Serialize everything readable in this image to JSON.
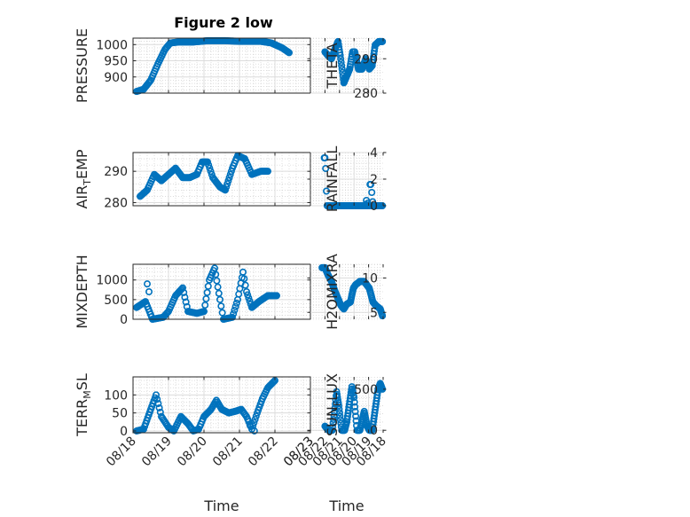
{
  "figure": {
    "title": "Figure 2 low"
  },
  "chart_data": [
    {
      "type": "scatter",
      "ylabel": "PRESSURE",
      "title": "Figure 2 low",
      "xlim": [
        0,
        5
      ],
      "ylim": [
        850,
        1020
      ],
      "yticks": [
        900,
        950,
        1000
      ],
      "ytick_labels": [
        "900",
        "950",
        "1000"
      ],
      "x_tick_labels": [
        "08/18",
        "08/19",
        "08/20",
        "08/21",
        "08/22",
        "08/23"
      ],
      "show_x_tick_labels": false,
      "xlabel": "",
      "grid": true,
      "marker": "open-circle",
      "color": "#0072BD",
      "curve": [
        [
          0.1,
          855
        ],
        [
          0.3,
          862
        ],
        [
          0.5,
          890
        ],
        [
          0.7,
          940
        ],
        [
          0.9,
          985
        ],
        [
          1.05,
          1005
        ],
        [
          1.3,
          1008
        ],
        [
          1.7,
          1008
        ],
        [
          2.1,
          1012
        ],
        [
          2.6,
          1012
        ],
        [
          3.0,
          1010
        ],
        [
          3.6,
          1010
        ],
        [
          3.9,
          1005
        ],
        [
          4.2,
          990
        ],
        [
          4.4,
          975
        ]
      ]
    },
    {
      "type": "scatter",
      "ylabel": "THETA",
      "xlim": [
        0,
        5
      ],
      "ylim": [
        280,
        296
      ],
      "yticks": [
        280,
        290
      ],
      "ytick_labels": [
        "280",
        "290"
      ],
      "x_tick_labels": [
        "08/18",
        "08/19",
        "08/20",
        "08/21",
        "08/22",
        "08/23"
      ],
      "show_x_tick_labels": false,
      "xlabel": "",
      "grid": true,
      "marker": "open-circle",
      "color": "#0072BD",
      "curve": [
        [
          0.05,
          295
        ],
        [
          0.3,
          295
        ],
        [
          0.55,
          294
        ],
        [
          0.75,
          288
        ],
        [
          0.95,
          287
        ],
        [
          1.2,
          290
        ],
        [
          1.45,
          287
        ],
        [
          1.7,
          287
        ],
        [
          1.95,
          292
        ],
        [
          2.1,
          292
        ],
        [
          2.3,
          287
        ],
        [
          2.5,
          285
        ],
        [
          2.7,
          283
        ],
        [
          2.95,
          291
        ],
        [
          3.1,
          295
        ],
        [
          3.3,
          293
        ],
        [
          3.55,
          290
        ],
        [
          3.8,
          291
        ],
        [
          4.0,
          292
        ]
      ]
    },
    {
      "type": "scatter",
      "ylabel": "AIR_TEMP",
      "xlim": [
        0,
        5
      ],
      "ylim": [
        279,
        296
      ],
      "yticks": [
        280,
        290
      ],
      "ytick_labels": [
        "280",
        "290"
      ],
      "x_tick_labels": [
        "08/18",
        "08/19",
        "08/20",
        "08/21",
        "08/22",
        "08/23"
      ],
      "show_x_tick_labels": false,
      "xlabel": "",
      "grid": true,
      "marker": "open-circle",
      "color": "#0072BD",
      "curve": [
        [
          0.2,
          282
        ],
        [
          0.4,
          284
        ],
        [
          0.6,
          289
        ],
        [
          0.8,
          287
        ],
        [
          1.0,
          289
        ],
        [
          1.2,
          291
        ],
        [
          1.4,
          288
        ],
        [
          1.6,
          288
        ],
        [
          1.8,
          289
        ],
        [
          1.95,
          293
        ],
        [
          2.1,
          293
        ],
        [
          2.25,
          288
        ],
        [
          2.45,
          285
        ],
        [
          2.6,
          284
        ],
        [
          2.8,
          291
        ],
        [
          2.95,
          295
        ],
        [
          3.15,
          294
        ],
        [
          3.35,
          289
        ],
        [
          3.6,
          290
        ],
        [
          3.8,
          290
        ]
      ]
    },
    {
      "type": "scatter",
      "ylabel": "RAINFALL",
      "xlim": [
        0,
        5
      ],
      "ylim": [
        0,
        4
      ],
      "yticks": [
        0,
        2,
        4
      ],
      "ytick_labels": [
        "0",
        "2",
        "4"
      ],
      "x_tick_labels": [
        "08/18",
        "08/19",
        "08/20",
        "08/21",
        "08/22",
        "08/23"
      ],
      "show_x_tick_labels": false,
      "xlabel": "",
      "grid": true,
      "marker": "open-circle",
      "color": "#0072BD",
      "curve": [
        [
          0.05,
          0
        ],
        [
          3.85,
          0
        ]
      ],
      "extra": [
        [
          0.72,
          0.3
        ],
        [
          0.78,
          1.0
        ],
        [
          0.85,
          1.6
        ],
        [
          0.9,
          1.6
        ],
        [
          1.05,
          0.2
        ],
        [
          1.15,
          0.4
        ],
        [
          1.2,
          0.1
        ],
        [
          3.9,
          1.1
        ],
        [
          3.95,
          2.8
        ],
        [
          4.0,
          3.6
        ],
        [
          4.05,
          3.6
        ]
      ]
    },
    {
      "type": "scatter",
      "ylabel": "MIXDEPTH",
      "xlim": [
        0,
        5
      ],
      "ylim": [
        0,
        1400
      ],
      "yticks": [
        0,
        500,
        1000
      ],
      "ytick_labels": [
        "0",
        "500",
        "1000"
      ],
      "x_tick_labels": [
        "08/18",
        "08/19",
        "08/20",
        "08/21",
        "08/22",
        "08/23"
      ],
      "show_x_tick_labels": false,
      "xlabel": "",
      "grid": true,
      "marker": "open-circle",
      "color": "#0072BD",
      "curve": [
        [
          0.1,
          300
        ],
        [
          0.35,
          450
        ],
        [
          0.55,
          0
        ],
        [
          0.85,
          50
        ],
        [
          1.0,
          200
        ],
        [
          1.2,
          600
        ],
        [
          1.4,
          800
        ],
        [
          1.55,
          200
        ],
        [
          1.8,
          150
        ],
        [
          2.0,
          200
        ],
        [
          2.15,
          1000
        ],
        [
          2.3,
          1300
        ],
        [
          2.45,
          500
        ],
        [
          2.55,
          0
        ],
        [
          2.8,
          50
        ],
        [
          2.95,
          500
        ],
        [
          3.1,
          1200
        ],
        [
          3.2,
          700
        ],
        [
          3.35,
          300
        ],
        [
          3.55,
          450
        ],
        [
          3.8,
          600
        ],
        [
          4.05,
          600
        ]
      ],
      "extra": [
        [
          0.4,
          900
        ],
        [
          0.45,
          700
        ]
      ]
    },
    {
      "type": "scatter",
      "ylabel": "H2OMIXRA",
      "xlim": [
        0,
        5
      ],
      "ylim": [
        4,
        12
      ],
      "yticks": [
        5,
        10
      ],
      "ytick_labels": [
        "5",
        "10"
      ],
      "x_tick_labels": [
        "08/18",
        "08/19",
        "08/20",
        "08/21",
        "08/22",
        "08/23"
      ],
      "show_x_tick_labels": false,
      "xlabel": "",
      "grid": true,
      "marker": "open-circle",
      "color": "#0072BD",
      "curve": [
        [
          0.05,
          4.5
        ],
        [
          0.2,
          5.5
        ],
        [
          0.5,
          6.0
        ],
        [
          0.7,
          6.5
        ],
        [
          0.95,
          8.5
        ],
        [
          1.3,
          9.5
        ],
        [
          1.6,
          9.5
        ],
        [
          1.9,
          9.0
        ],
        [
          2.05,
          8.5
        ],
        [
          2.25,
          6.5
        ],
        [
          2.5,
          6.2
        ],
        [
          2.7,
          5.5
        ],
        [
          2.9,
          6.0
        ],
        [
          3.1,
          7.0
        ],
        [
          3.3,
          8.0
        ],
        [
          3.55,
          9.5
        ],
        [
          3.8,
          10.5
        ],
        [
          4.0,
          11.5
        ],
        [
          4.2,
          11.5
        ]
      ]
    },
    {
      "type": "scatter",
      "ylabel": "TERR_MSL",
      "xlim": [
        0,
        5
      ],
      "ylim": [
        -5,
        150
      ],
      "yticks": [
        0,
        50,
        100
      ],
      "ytick_labels": [
        "0",
        "50",
        "100"
      ],
      "x_tick_labels": [
        "08/18",
        "08/19",
        "08/20",
        "08/21",
        "08/22",
        "08/23"
      ],
      "show_x_tick_labels": true,
      "xlabel": "Time",
      "grid": true,
      "marker": "open-circle",
      "color": "#0072BD",
      "curve": [
        [
          0.1,
          0
        ],
        [
          0.3,
          5
        ],
        [
          0.5,
          60
        ],
        [
          0.65,
          100
        ],
        [
          0.8,
          40
        ],
        [
          1.0,
          10
        ],
        [
          1.15,
          0
        ],
        [
          1.35,
          40
        ],
        [
          1.55,
          20
        ],
        [
          1.7,
          0
        ],
        [
          1.85,
          5
        ],
        [
          2.0,
          40
        ],
        [
          2.2,
          60
        ],
        [
          2.35,
          85
        ],
        [
          2.5,
          60
        ],
        [
          2.7,
          50
        ],
        [
          2.9,
          55
        ],
        [
          3.05,
          60
        ],
        [
          3.2,
          40
        ],
        [
          3.35,
          5
        ],
        [
          3.5,
          50
        ],
        [
          3.65,
          90
        ],
        [
          3.8,
          120
        ],
        [
          4.0,
          140
        ]
      ],
      "extra": [
        [
          3.3,
          15
        ],
        [
          3.42,
          0
        ]
      ]
    },
    {
      "type": "scatter",
      "ylabel": "SUN_FLUX",
      "xlim": [
        0,
        5
      ],
      "ylim": [
        -30,
        650
      ],
      "yticks": [
        0,
        500
      ],
      "ytick_labels": [
        "0",
        "500"
      ],
      "x_tick_labels": [
        "08/18",
        "08/19",
        "08/20",
        "08/21",
        "08/22",
        "08/23"
      ],
      "show_x_tick_labels": true,
      "xlabel": "Time",
      "grid": true,
      "marker": "open-circle",
      "color": "#0072BD",
      "curve": [
        [
          0.05,
          500
        ],
        [
          0.2,
          570
        ],
        [
          0.35,
          500
        ],
        [
          0.55,
          250
        ],
        [
          0.75,
          0
        ],
        [
          0.95,
          0
        ],
        [
          1.1,
          50
        ],
        [
          1.3,
          230
        ],
        [
          1.45,
          120
        ],
        [
          1.6,
          0
        ],
        [
          1.8,
          0
        ],
        [
          2.0,
          400
        ],
        [
          2.15,
          530
        ],
        [
          2.3,
          350
        ],
        [
          2.5,
          100
        ],
        [
          2.65,
          0
        ],
        [
          2.85,
          0
        ],
        [
          3.05,
          300
        ],
        [
          3.2,
          470
        ],
        [
          3.35,
          220
        ],
        [
          3.5,
          0
        ],
        [
          3.75,
          0
        ],
        [
          4.0,
          50
        ]
      ]
    }
  ]
}
